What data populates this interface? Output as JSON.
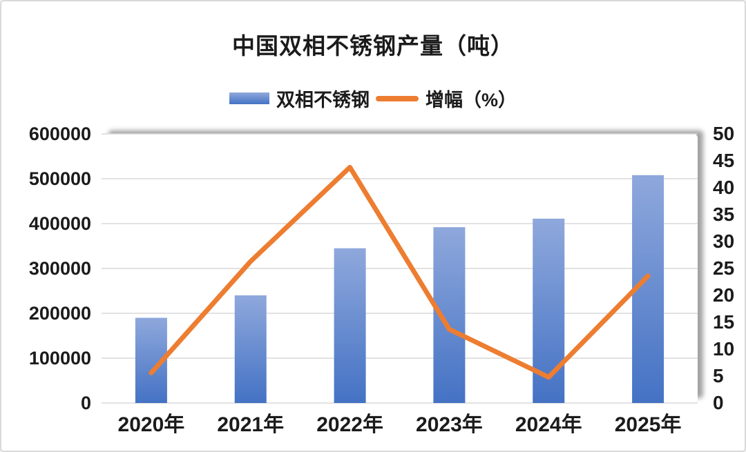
{
  "title": "中国双相不锈钢产量（吨）",
  "legend": [
    {
      "label": "双相不锈钢",
      "type": "bar"
    },
    {
      "label": "增幅（%）",
      "type": "line"
    }
  ],
  "colors": {
    "bar_top": "#8FA8DC",
    "bar_bottom": "#4472C4",
    "line": "#ED7D31",
    "grid": "#D9D9D9",
    "text": "#1B1B1B",
    "window_border": "#D9D9D9"
  },
  "chart_data": {
    "type": "bar",
    "subtype": "combo-bar-line",
    "title": "中国双相不锈钢产量（吨）",
    "categories": [
      "2020年",
      "2021年",
      "2022年",
      "2023年",
      "2024年",
      "2025年"
    ],
    "series": [
      {
        "name": "双相不锈钢",
        "type": "bar",
        "axis": "left",
        "values": [
          190000,
          240000,
          345000,
          392000,
          411000,
          508000
        ]
      },
      {
        "name": "增幅（%）",
        "type": "line",
        "axis": "right",
        "values": [
          5.6,
          26.3,
          43.8,
          13.7,
          4.8,
          23.6
        ]
      }
    ],
    "left_axis": {
      "min": 0,
      "max": 600000,
      "step": 100000,
      "ticks": [
        "0",
        "100000",
        "200000",
        "300000",
        "400000",
        "500000",
        "600000"
      ]
    },
    "right_axis": {
      "min": 0,
      "max": 50,
      "step": 5,
      "ticks": [
        "0",
        "5",
        "10",
        "15",
        "20",
        "25",
        "30",
        "35",
        "40",
        "45",
        "50"
      ]
    },
    "grid": "horizontal-only",
    "legend_position": "top",
    "line_drawn_over_bars": true
  }
}
